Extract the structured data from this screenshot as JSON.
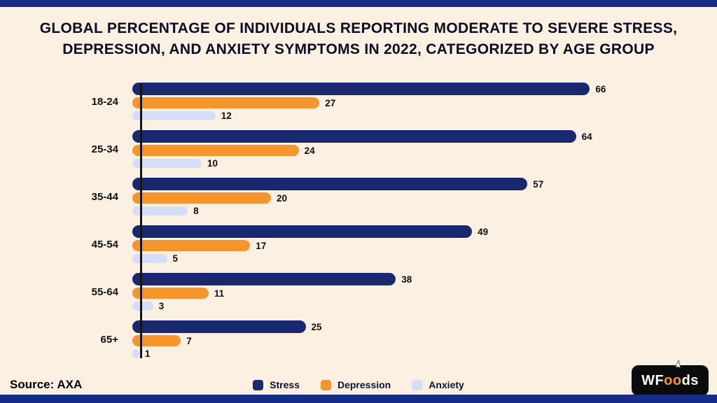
{
  "title": {
    "line1": "GLOBAL PERCENTAGE OF INDIVIDUALS REPORTING MODERATE TO SEVERE STRESS,",
    "line2": "DEPRESSION, AND ANXIETY SYMPTOMS IN 2022, CATEGORIZED BY AGE GROUP"
  },
  "source_label": "Source: AXA",
  "logo": {
    "prefix": "WF",
    "oo": "oo",
    "suffix": "ds"
  },
  "colors": {
    "stress": "#1a2870",
    "depression": "#f7952d",
    "anxiety": "#d5def8",
    "background": "#fbf0e2",
    "strip": "#172c86"
  },
  "chart_data": {
    "type": "bar",
    "orientation": "horizontal",
    "title": "GLOBAL PERCENTAGE OF INDIVIDUALS REPORTING MODERATE TO SEVERE STRESS, DEPRESSION, AND ANXIETY SYMPTOMS IN 2022, CATEGORIZED BY AGE GROUP",
    "categories": [
      "18-24",
      "25-34",
      "35-44",
      "45-54",
      "55-64",
      "65+"
    ],
    "series": [
      {
        "name": "Stress",
        "color": "#1a2870",
        "values": [
          66,
          64,
          57,
          49,
          38,
          25
        ]
      },
      {
        "name": "Depression",
        "color": "#f7952d",
        "values": [
          27,
          24,
          20,
          17,
          11,
          7
        ]
      },
      {
        "name": "Anxiety",
        "color": "#d5def8",
        "values": [
          12,
          10,
          8,
          5,
          3,
          1
        ]
      }
    ],
    "xlim": [
      0,
      70
    ],
    "value_labels": true,
    "legend_position": "bottom",
    "grid": false,
    "source": "AXA"
  }
}
